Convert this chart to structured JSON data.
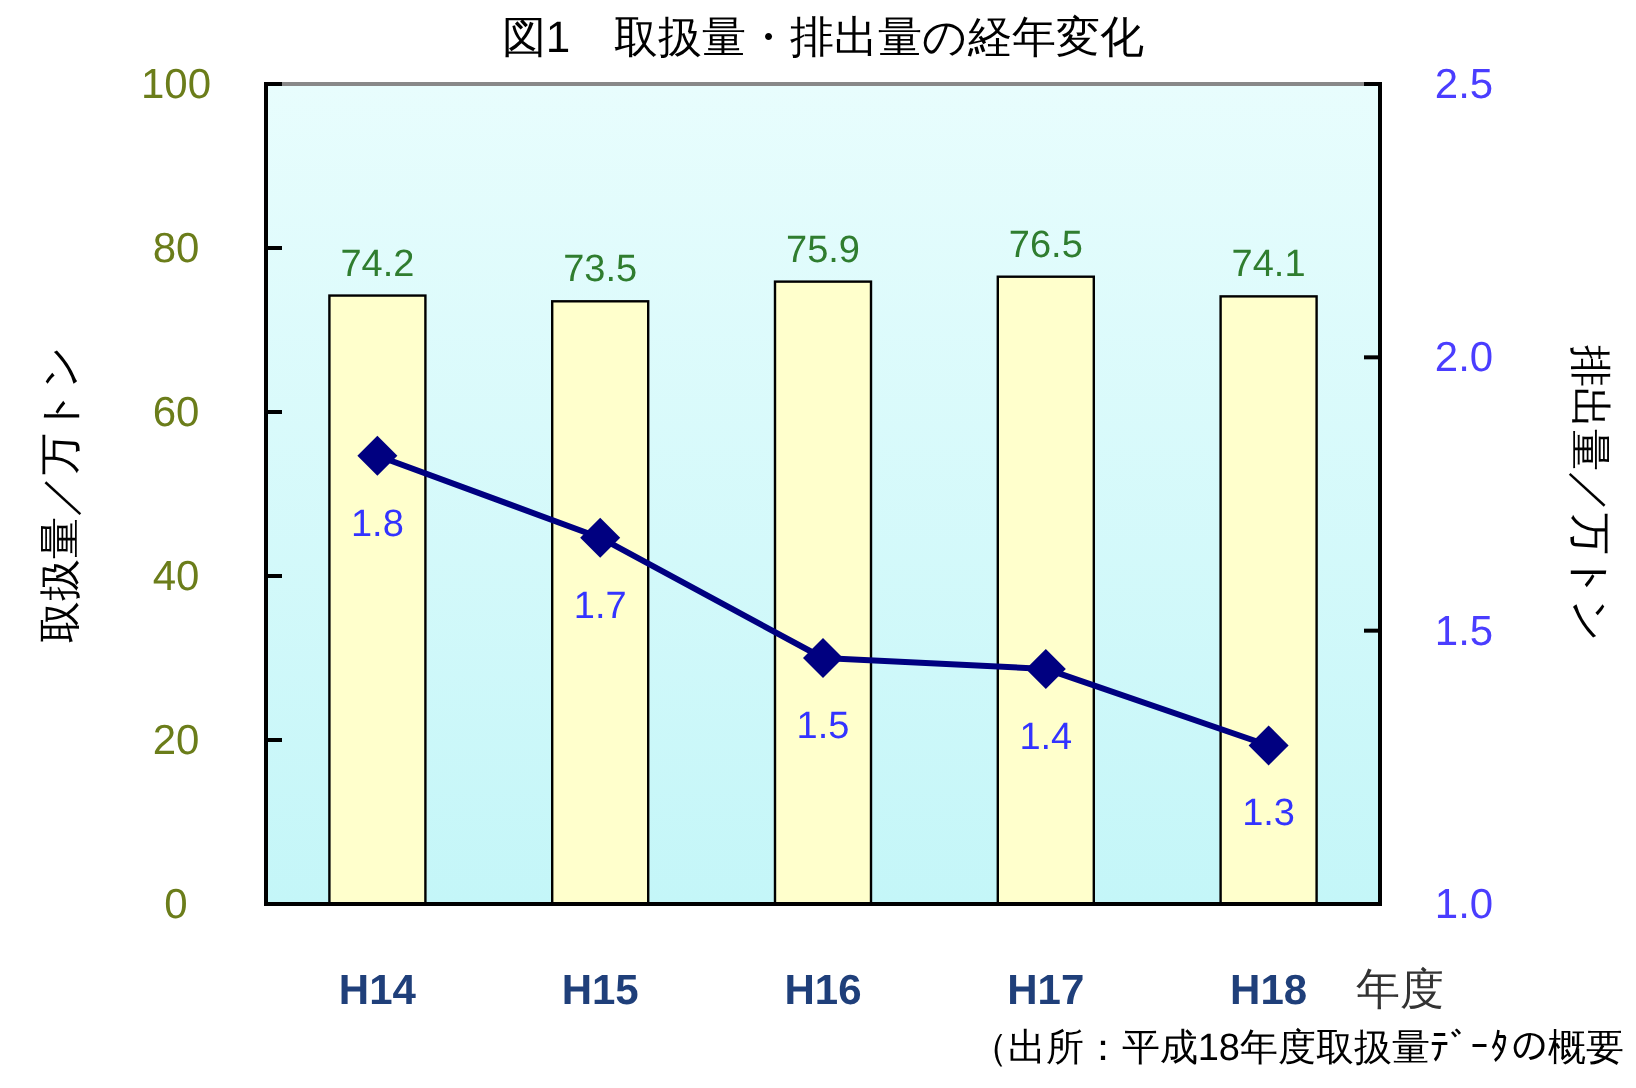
{
  "chart_data": {
    "type": "bar",
    "title": "図1　取扱量・排出量の経年変化",
    "xlabel": "年度",
    "ylabel": "取扱量／万トン",
    "y2label": "排出量／万トン",
    "categories": [
      "H14",
      "H15",
      "H16",
      "H17",
      "H18"
    ],
    "series": [
      {
        "color": "#ffffcc",
        "values": [
          74.2,
          73.5,
          75.9,
          76.5,
          74.1
        ]
      },
      {
        "type": "line",
        "axis": "y2",
        "color": "#000080",
        "marker": "diamond",
        "line_style": "solid",
        "values": [
          1.82,
          1.67,
          1.45,
          1.43,
          1.29
        ],
        "value_labels": [
          "1.8",
          "1.7",
          "1.5",
          "1.4",
          "1.3"
        ]
      }
    ],
    "data_labels": true,
    "ylim": [
      0,
      100
    ],
    "yticks": [
      0,
      20,
      40,
      60,
      80,
      100
    ],
    "y2lim": [
      1.0,
      2.5
    ],
    "y2ticks": [
      {
        "value": 1.0,
        "label": "1.0"
      },
      {
        "value": 1.5,
        "label": "1.5"
      },
      {
        "value": 2.0,
        "label": "2.0"
      },
      {
        "value": 2.5,
        "label": "2.5"
      }
    ],
    "grid": false,
    "annotations": [
      "（出所：平成18年度取扱量ﾃﾞｰﾀの概要"
    ]
  }
}
